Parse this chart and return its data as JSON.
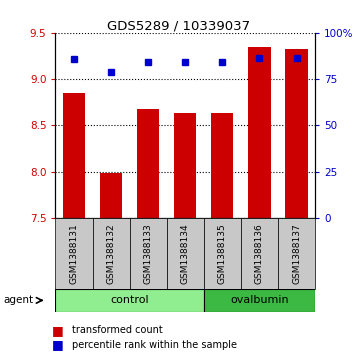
{
  "title": "GDS5289 / 10339037",
  "samples": [
    "GSM1388131",
    "GSM1388132",
    "GSM1388133",
    "GSM1388134",
    "GSM1388135",
    "GSM1388136",
    "GSM1388137"
  ],
  "bar_values": [
    8.85,
    7.98,
    8.68,
    8.63,
    8.63,
    9.35,
    9.32
  ],
  "dot_values": [
    9.22,
    9.08,
    9.18,
    9.18,
    9.18,
    9.23,
    9.23
  ],
  "ylim_left": [
    7.5,
    9.5
  ],
  "ylim_right": [
    0,
    100
  ],
  "yticks_left": [
    7.5,
    8.0,
    8.5,
    9.0,
    9.5
  ],
  "yticks_right": [
    0,
    25,
    50,
    75,
    100
  ],
  "ytick_labels_right": [
    "0",
    "25",
    "50",
    "75",
    "100%"
  ],
  "bar_color": "#cc0000",
  "dot_color": "#0000cc",
  "bar_width": 0.6,
  "control_label": "control",
  "ovalbumin_label": "ovalbumin",
  "control_color": "#90ee90",
  "ovalbumin_color": "#3cb943",
  "agent_label": "agent",
  "legend_bar_label": "transformed count",
  "legend_dot_label": "percentile rank within the sample",
  "tick_label_area_color": "#c8c8c8",
  "left_axis_color": "#cc0000",
  "right_axis_color": "#0000cc"
}
